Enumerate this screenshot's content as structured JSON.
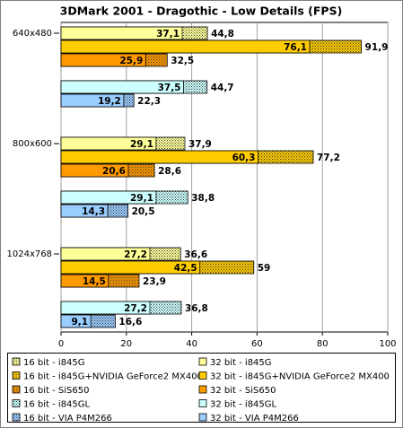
{
  "chart_data": {
    "type": "overlap-bar",
    "title": "3DMark 2001 - Dragothic - Low Details (FPS)",
    "categories": [
      "640x480",
      "800x600",
      "1024x768"
    ],
    "series": [
      {
        "name": "16 bit - i845G",
        "color": "#ffff99",
        "fill": "dotted",
        "values": [
          44.8,
          37.9,
          36.6
        ],
        "value_labels": [
          "44,8",
          "37,9",
          "36,6"
        ]
      },
      {
        "name": "32 bit - i845G",
        "color": "#ffff99",
        "fill": "solid",
        "values": [
          37.1,
          29.1,
          27.2
        ],
        "value_labels": [
          "37,1",
          "29,1",
          "27,2"
        ]
      },
      {
        "name": "16 bit - i845G+NVIDIA GeForce2 MX400",
        "color": "#ffcc00",
        "fill": "dotted",
        "values": [
          91.9,
          77.2,
          59
        ],
        "value_labels": [
          "91,9",
          "77,2",
          "59"
        ]
      },
      {
        "name": "32 bit - i845G+NVIDIA GeForce2 MX400",
        "color": "#ffcc00",
        "fill": "solid",
        "values": [
          76.1,
          60.3,
          42.5
        ],
        "value_labels": [
          "76,1",
          "60,3",
          "42,5"
        ]
      },
      {
        "name": "16 bit - SiS650",
        "color": "#ff9900",
        "fill": "dotted",
        "values": [
          32.5,
          28.6,
          23.9
        ],
        "value_labels": [
          "32,5",
          "28,6",
          "23,9"
        ]
      },
      {
        "name": "32 bit - SiS650",
        "color": "#ff9900",
        "fill": "solid",
        "values": [
          25.9,
          20.6,
          14.5
        ],
        "value_labels": [
          "25,9",
          "20,6",
          "14,5"
        ]
      },
      {
        "name": "16 bit - i845GL",
        "color": "#ccffff",
        "fill": "dotted",
        "values": [
          44.7,
          38.8,
          36.8
        ],
        "value_labels": [
          "44,7",
          "38,8",
          "36,8"
        ]
      },
      {
        "name": "32 bit - i845GL",
        "color": "#ccffff",
        "fill": "solid",
        "values": [
          37.5,
          29.1,
          27.2
        ],
        "value_labels": [
          "37,5",
          "29,1",
          "27,2"
        ]
      },
      {
        "name": "16 bit - VIA P4M266",
        "color": "#99ccff",
        "fill": "dotted",
        "values": [
          22.3,
          20.5,
          16.6
        ],
        "value_labels": [
          "22,3",
          "20,5",
          "16,6"
        ]
      },
      {
        "name": "32 bit - VIA P4M266",
        "color": "#99ccff",
        "fill": "solid",
        "values": [
          19.2,
          14.3,
          9.1
        ],
        "value_labels": [
          "19,2",
          "14,3",
          "9,1"
        ]
      }
    ],
    "xlim": [
      0,
      100
    ],
    "xticks": [
      0,
      20,
      40,
      60,
      80,
      100
    ],
    "grid": true
  }
}
